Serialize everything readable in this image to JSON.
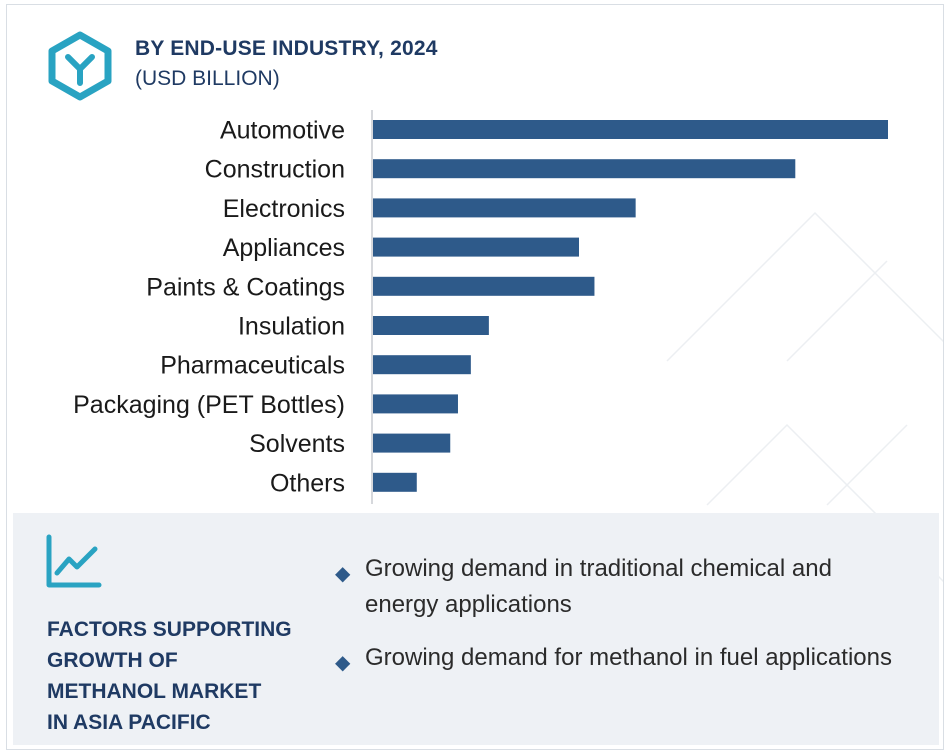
{
  "header": {
    "title": "BY END-USE INDUSTRY, 2024",
    "subtitle": "(USD BILLION)",
    "logo_icon": "hexagon-y-logo-icon",
    "logo_color": "#29a3c2"
  },
  "chart_data": {
    "type": "bar",
    "orientation": "horizontal",
    "categories": [
      "Automotive",
      "Construction",
      "Electronics",
      "Appliances",
      "Paints & Coatings",
      "Insulation",
      "Pharmaceuticals",
      "Packaging (PET Bottles)",
      "Solvents",
      "Others"
    ],
    "values": [
      100,
      82,
      51,
      40,
      43,
      22.5,
      19,
      16.5,
      15,
      8.5
    ],
    "bar_color": "#2e5a8a",
    "grid": false,
    "value_labels": false
  },
  "factors": {
    "icon": "trend-chart-icon",
    "heading_lines": [
      "FACTORS SUPPORTING",
      "GROWTH OF",
      "METHANOL MARKET",
      "IN ASIA PACIFIC"
    ],
    "bullet_icon": "diamond-bullet-icon",
    "bullets": [
      "Growing demand in traditional chemical and energy applications",
      "Growing demand for methanol in fuel applications"
    ]
  }
}
